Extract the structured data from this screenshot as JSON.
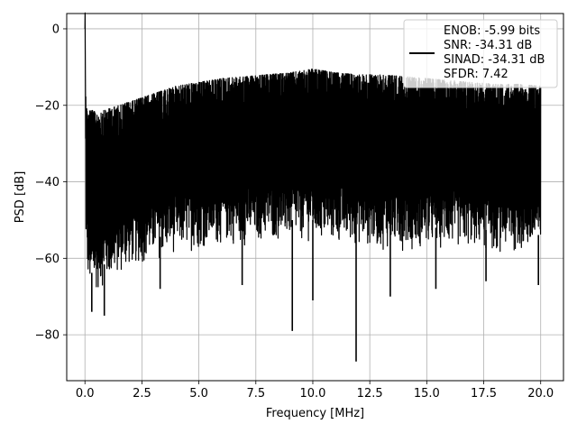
{
  "chart_data": {
    "type": "line",
    "xlabel": "Frequency [MHz]",
    "ylabel": "PSD [dB]",
    "xlim": [
      -0.8,
      21.0
    ],
    "ylim": [
      -92,
      4
    ],
    "xticks": [
      0.0,
      2.5,
      5.0,
      7.5,
      10.0,
      12.5,
      15.0,
      17.5,
      20.0
    ],
    "xtick_labels": [
      "0.0",
      "2.5",
      "5.0",
      "7.5",
      "10.0",
      "12.5",
      "15.0",
      "17.5",
      "20.0"
    ],
    "yticks": [
      0,
      -20,
      -40,
      -60,
      -80
    ],
    "ytick_labels": [
      "0",
      "−20",
      "−40",
      "−60",
      "−80"
    ],
    "grid": true,
    "legend_position": "top-right",
    "series": [
      {
        "color": "#000000",
        "x": [
          0.0,
          0.05,
          0.1,
          0.25,
          0.5,
          1.0,
          1.5,
          2.0,
          2.5,
          3.0,
          3.5,
          4.0,
          5.0,
          6.0,
          7.0,
          8.0,
          9.0,
          10.0,
          11.0,
          12.0,
          13.0,
          14.0,
          15.0,
          16.0,
          17.0,
          18.0,
          19.0,
          20.0
        ],
        "peak": [
          0.0,
          -17,
          -22,
          -21,
          -22,
          -21,
          -20,
          -19,
          -18,
          -17,
          -16,
          -15,
          -14,
          -13,
          -12.5,
          -12,
          -11.5,
          -10.5,
          -11.5,
          -12,
          -12,
          -12.5,
          -13,
          -13.5,
          -14,
          -14.5,
          -14.5,
          -15
        ],
        "floor": [
          0.0,
          -62,
          -66,
          -70,
          -69,
          -67,
          -65,
          -63,
          -62,
          -61,
          -60,
          -59,
          -58,
          -57,
          -57,
          -56,
          -56,
          -56,
          -57,
          -57,
          -58,
          -58,
          -58,
          -58,
          -58,
          -59,
          -59,
          -60
        ],
        "dips": [
          {
            "x": 9.1,
            "y": -79
          },
          {
            "x": 11.9,
            "y": -87
          },
          {
            "x": 0.85,
            "y": -75
          },
          {
            "x": 0.3,
            "y": -74
          },
          {
            "x": 10.0,
            "y": -71
          },
          {
            "x": 13.4,
            "y": -70
          },
          {
            "x": 15.4,
            "y": -68
          },
          {
            "x": 19.9,
            "y": -67
          },
          {
            "x": 6.9,
            "y": -67
          },
          {
            "x": 17.6,
            "y": -66
          },
          {
            "x": 3.3,
            "y": -68
          }
        ]
      }
    ],
    "legend": {
      "lines": [
        "ENOB: -5.99 bits",
        "SNR: -34.31 dB",
        "SINAD: -34.31 dB",
        "SFDR: 7.42"
      ]
    }
  }
}
